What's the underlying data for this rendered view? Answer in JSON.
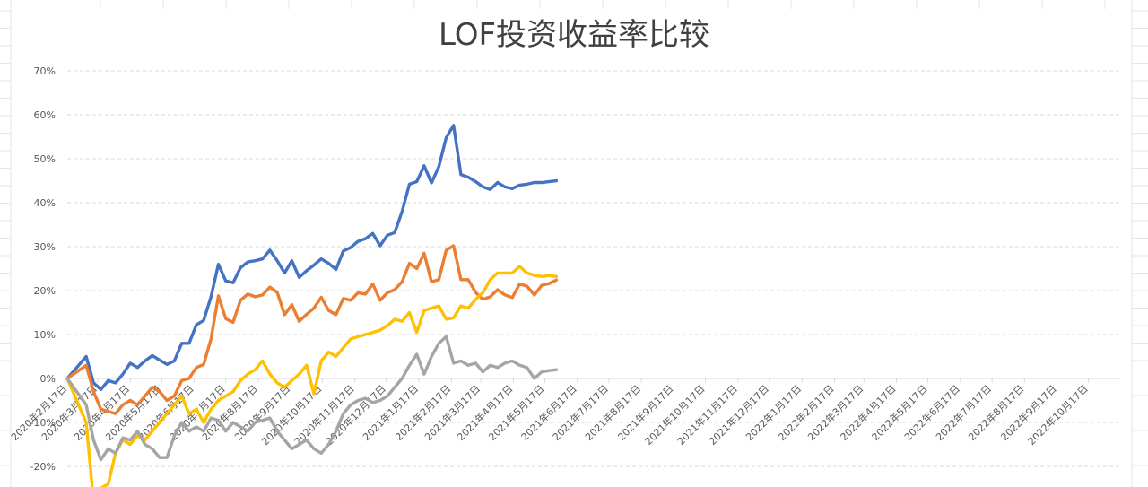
{
  "chart_data": {
    "type": "line",
    "title": "LOF投资收益率比较",
    "xlabel": "",
    "ylabel": "",
    "grid": true,
    "legend": "none",
    "ylim": [
      -0.2,
      0.7
    ],
    "y_ticks": [
      "70%",
      "60%",
      "50%",
      "40%",
      "30%",
      "20%",
      "10%",
      "0%",
      "-10%",
      "-20%"
    ],
    "x_ticks": [
      "2020年2月17日",
      "2020年3月17日",
      "2020年4月17日",
      "2020年5月17日",
      "2020年6月17日",
      "2020年7月17日",
      "2020年8月17日",
      "2020年9月17日",
      "2020年10月17日",
      "2020年11月17日",
      "2020年12月17日",
      "2021年1月17日",
      "2021年2月17日",
      "2021年3月17日",
      "2021年4月17日",
      "2021年5月17日",
      "2021年6月17日",
      "2021年7月17日",
      "2021年8月17日",
      "2021年9月17日",
      "2021年10月17日",
      "2021年11月17日",
      "2021年12月17日",
      "2022年1月17日",
      "2022年2月17日",
      "2022年3月17日",
      "2022年4月17日",
      "2022年5月17日",
      "2022年6月17日",
      "2022年7月17日",
      "2022年8月17日",
      "2022年9月17日",
      "2022年10月17日"
    ],
    "x_start": "2020-02-17",
    "x_end": "2022-11-17",
    "series": [
      {
        "color": "#4472c4",
        "x": [
          "2020-02-17",
          "2020-03-06",
          "2020-03-13",
          "2020-03-20",
          "2020-03-27",
          "2020-04-03",
          "2020-04-10",
          "2020-04-17",
          "2020-04-24",
          "2020-05-01",
          "2020-05-08",
          "2020-05-15",
          "2020-05-22",
          "2020-05-29",
          "2020-06-05",
          "2020-06-12",
          "2020-06-19",
          "2020-06-26",
          "2020-07-03",
          "2020-07-10",
          "2020-07-17",
          "2020-07-24",
          "2020-07-31",
          "2020-08-07",
          "2020-08-14",
          "2020-08-21",
          "2020-08-28",
          "2020-09-04",
          "2020-09-11",
          "2020-09-18",
          "2020-09-25",
          "2020-10-02",
          "2020-10-09",
          "2020-10-16",
          "2020-10-23",
          "2020-10-30",
          "2020-11-06",
          "2020-11-13",
          "2020-11-20",
          "2020-11-27",
          "2020-12-04",
          "2020-12-11",
          "2020-12-18",
          "2020-12-25",
          "2021-01-01",
          "2021-01-08",
          "2021-01-15",
          "2021-01-22",
          "2021-01-29",
          "2021-02-05",
          "2021-02-12",
          "2021-02-19",
          "2021-02-26",
          "2021-03-05",
          "2021-03-12",
          "2021-03-19",
          "2021-03-26",
          "2021-04-02",
          "2021-04-09",
          "2021-04-16",
          "2021-04-23",
          "2021-04-30",
          "2021-05-07",
          "2021-05-14",
          "2021-05-21",
          "2021-05-28"
        ],
        "y": [
          0.0,
          0.05,
          -0.01,
          -0.025,
          -0.005,
          -0.01,
          0.01,
          0.035,
          0.025,
          0.04,
          0.052,
          0.042,
          0.032,
          0.04,
          0.08,
          0.08,
          0.122,
          0.132,
          0.186,
          0.26,
          0.222,
          0.218,
          0.252,
          0.265,
          0.268,
          0.272,
          0.292,
          0.268,
          0.24,
          0.268,
          0.23,
          0.245,
          0.258,
          0.272,
          0.262,
          0.248,
          0.29,
          0.298,
          0.312,
          0.318,
          0.33,
          0.302,
          0.326,
          0.332,
          0.38,
          0.442,
          0.448,
          0.484,
          0.445,
          0.482,
          0.548,
          0.576,
          0.464,
          0.458,
          0.448,
          0.436,
          0.43,
          0.446,
          0.436,
          0.432,
          0.44,
          0.442,
          0.446,
          0.446,
          0.448,
          0.45
        ]
      },
      {
        "color": "#ed7d31",
        "x": [
          "2020-02-17",
          "2020-03-06",
          "2020-03-13",
          "2020-03-20",
          "2020-03-27",
          "2020-04-03",
          "2020-04-10",
          "2020-04-17",
          "2020-04-24",
          "2020-05-01",
          "2020-05-08",
          "2020-05-15",
          "2020-05-22",
          "2020-05-29",
          "2020-06-05",
          "2020-06-12",
          "2020-06-19",
          "2020-06-26",
          "2020-07-03",
          "2020-07-10",
          "2020-07-17",
          "2020-07-24",
          "2020-07-31",
          "2020-08-07",
          "2020-08-14",
          "2020-08-21",
          "2020-08-28",
          "2020-09-04",
          "2020-09-11",
          "2020-09-18",
          "2020-09-25",
          "2020-10-02",
          "2020-10-09",
          "2020-10-16",
          "2020-10-23",
          "2020-10-30",
          "2020-11-06",
          "2020-11-13",
          "2020-11-20",
          "2020-11-27",
          "2020-12-04",
          "2020-12-11",
          "2020-12-18",
          "2020-12-25",
          "2021-01-01",
          "2021-01-08",
          "2021-01-15",
          "2021-01-22",
          "2021-01-29",
          "2021-02-05",
          "2021-02-12",
          "2021-02-19",
          "2021-02-26",
          "2021-03-05",
          "2021-03-12",
          "2021-03-19",
          "2021-03-26",
          "2021-04-02",
          "2021-04-09",
          "2021-04-16",
          "2021-04-23",
          "2021-04-30",
          "2021-05-07",
          "2021-05-14",
          "2021-05-21",
          "2021-05-28"
        ],
        "y": [
          0.0,
          0.03,
          -0.03,
          -0.07,
          -0.075,
          -0.08,
          -0.06,
          -0.05,
          -0.06,
          -0.04,
          -0.02,
          -0.03,
          -0.05,
          -0.04,
          -0.005,
          0.0,
          0.025,
          0.032,
          0.09,
          0.188,
          0.136,
          0.128,
          0.178,
          0.192,
          0.186,
          0.19,
          0.208,
          0.196,
          0.145,
          0.168,
          0.13,
          0.146,
          0.16,
          0.185,
          0.155,
          0.145,
          0.182,
          0.178,
          0.195,
          0.192,
          0.215,
          0.178,
          0.195,
          0.202,
          0.22,
          0.262,
          0.25,
          0.285,
          0.22,
          0.225,
          0.292,
          0.302,
          0.225,
          0.225,
          0.196,
          0.18,
          0.186,
          0.202,
          0.19,
          0.184,
          0.215,
          0.21,
          0.19,
          0.212,
          0.216,
          0.224
        ]
      },
      {
        "color": "#ffc000",
        "x": [
          "2020-02-17",
          "2020-03-06",
          "2020-03-13",
          "2020-03-20",
          "2020-03-27",
          "2020-04-03",
          "2020-04-10",
          "2020-04-17",
          "2020-04-24",
          "2020-05-01",
          "2020-05-08",
          "2020-05-15",
          "2020-05-22",
          "2020-05-29",
          "2020-06-05",
          "2020-06-12",
          "2020-06-19",
          "2020-06-26",
          "2020-07-03",
          "2020-07-10",
          "2020-07-17",
          "2020-07-24",
          "2020-07-31",
          "2020-08-07",
          "2020-08-14",
          "2020-08-21",
          "2020-08-28",
          "2020-09-04",
          "2020-09-11",
          "2020-09-18",
          "2020-09-25",
          "2020-10-02",
          "2020-10-09",
          "2020-10-16",
          "2020-10-23",
          "2020-10-30",
          "2020-11-06",
          "2020-11-13",
          "2020-11-20",
          "2020-11-27",
          "2020-12-04",
          "2020-12-11",
          "2020-12-18",
          "2020-12-25",
          "2021-01-01",
          "2021-01-08",
          "2021-01-15",
          "2021-01-22",
          "2021-01-29",
          "2021-02-05",
          "2021-02-12",
          "2021-02-19",
          "2021-02-26",
          "2021-03-05",
          "2021-03-12",
          "2021-03-19",
          "2021-03-26",
          "2021-04-02",
          "2021-04-09",
          "2021-04-16",
          "2021-04-23",
          "2021-04-30",
          "2021-05-07",
          "2021-05-14",
          "2021-05-21",
          "2021-05-28"
        ],
        "y": [
          0.0,
          -0.1,
          -0.28,
          -0.25,
          -0.24,
          -0.17,
          -0.14,
          -0.15,
          -0.13,
          -0.14,
          -0.12,
          -0.1,
          -0.08,
          -0.06,
          -0.04,
          -0.08,
          -0.07,
          -0.1,
          -0.07,
          -0.05,
          -0.04,
          -0.03,
          -0.005,
          0.01,
          0.02,
          0.04,
          0.01,
          -0.01,
          -0.02,
          -0.005,
          0.01,
          0.03,
          -0.035,
          0.04,
          0.06,
          0.05,
          0.07,
          0.09,
          0.095,
          0.1,
          0.105,
          0.11,
          0.12,
          0.135,
          0.13,
          0.15,
          0.105,
          0.155,
          0.16,
          0.165,
          0.135,
          0.138,
          0.165,
          0.16,
          0.18,
          0.195,
          0.225,
          0.24,
          0.24,
          0.24,
          0.255,
          0.24,
          0.235,
          0.232,
          0.234,
          0.232
        ]
      },
      {
        "color": "#a5a5a5",
        "x": [
          "2020-02-17",
          "2020-03-06",
          "2020-03-13",
          "2020-03-20",
          "2020-03-27",
          "2020-04-03",
          "2020-04-10",
          "2020-04-17",
          "2020-04-24",
          "2020-05-01",
          "2020-05-08",
          "2020-05-15",
          "2020-05-22",
          "2020-05-29",
          "2020-06-05",
          "2020-06-12",
          "2020-06-19",
          "2020-06-26",
          "2020-07-03",
          "2020-07-10",
          "2020-07-17",
          "2020-07-24",
          "2020-07-31",
          "2020-08-07",
          "2020-08-14",
          "2020-08-21",
          "2020-08-28",
          "2020-09-04",
          "2020-09-11",
          "2020-09-18",
          "2020-09-25",
          "2020-10-02",
          "2020-10-09",
          "2020-10-16",
          "2020-10-23",
          "2020-10-30",
          "2020-11-06",
          "2020-11-13",
          "2020-11-20",
          "2020-11-27",
          "2020-12-04",
          "2020-12-11",
          "2020-12-18",
          "2020-12-25",
          "2021-01-01",
          "2021-01-08",
          "2021-01-15",
          "2021-01-22",
          "2021-01-29",
          "2021-02-05",
          "2021-02-12",
          "2021-02-19",
          "2021-02-26",
          "2021-03-05",
          "2021-03-12",
          "2021-03-19",
          "2021-03-26",
          "2021-04-02",
          "2021-04-09",
          "2021-04-16",
          "2021-04-23",
          "2021-04-30",
          "2021-05-07",
          "2021-05-14",
          "2021-05-21",
          "2021-05-28"
        ],
        "y": [
          0.0,
          -0.06,
          -0.14,
          -0.185,
          -0.16,
          -0.17,
          -0.135,
          -0.14,
          -0.12,
          -0.15,
          -0.16,
          -0.18,
          -0.18,
          -0.13,
          -0.1,
          -0.12,
          -0.11,
          -0.12,
          -0.09,
          -0.095,
          -0.12,
          -0.1,
          -0.11,
          -0.12,
          -0.1,
          -0.095,
          -0.09,
          -0.12,
          -0.14,
          -0.16,
          -0.15,
          -0.14,
          -0.16,
          -0.17,
          -0.15,
          -0.12,
          -0.08,
          -0.06,
          -0.05,
          -0.045,
          -0.055,
          -0.05,
          -0.04,
          -0.02,
          0.0,
          0.03,
          0.055,
          0.01,
          0.05,
          0.08,
          0.095,
          0.035,
          0.04,
          0.03,
          0.035,
          0.015,
          0.03,
          0.025,
          0.035,
          0.04,
          0.03,
          0.025,
          0.0,
          0.015,
          0.018,
          0.02
        ]
      }
    ]
  }
}
